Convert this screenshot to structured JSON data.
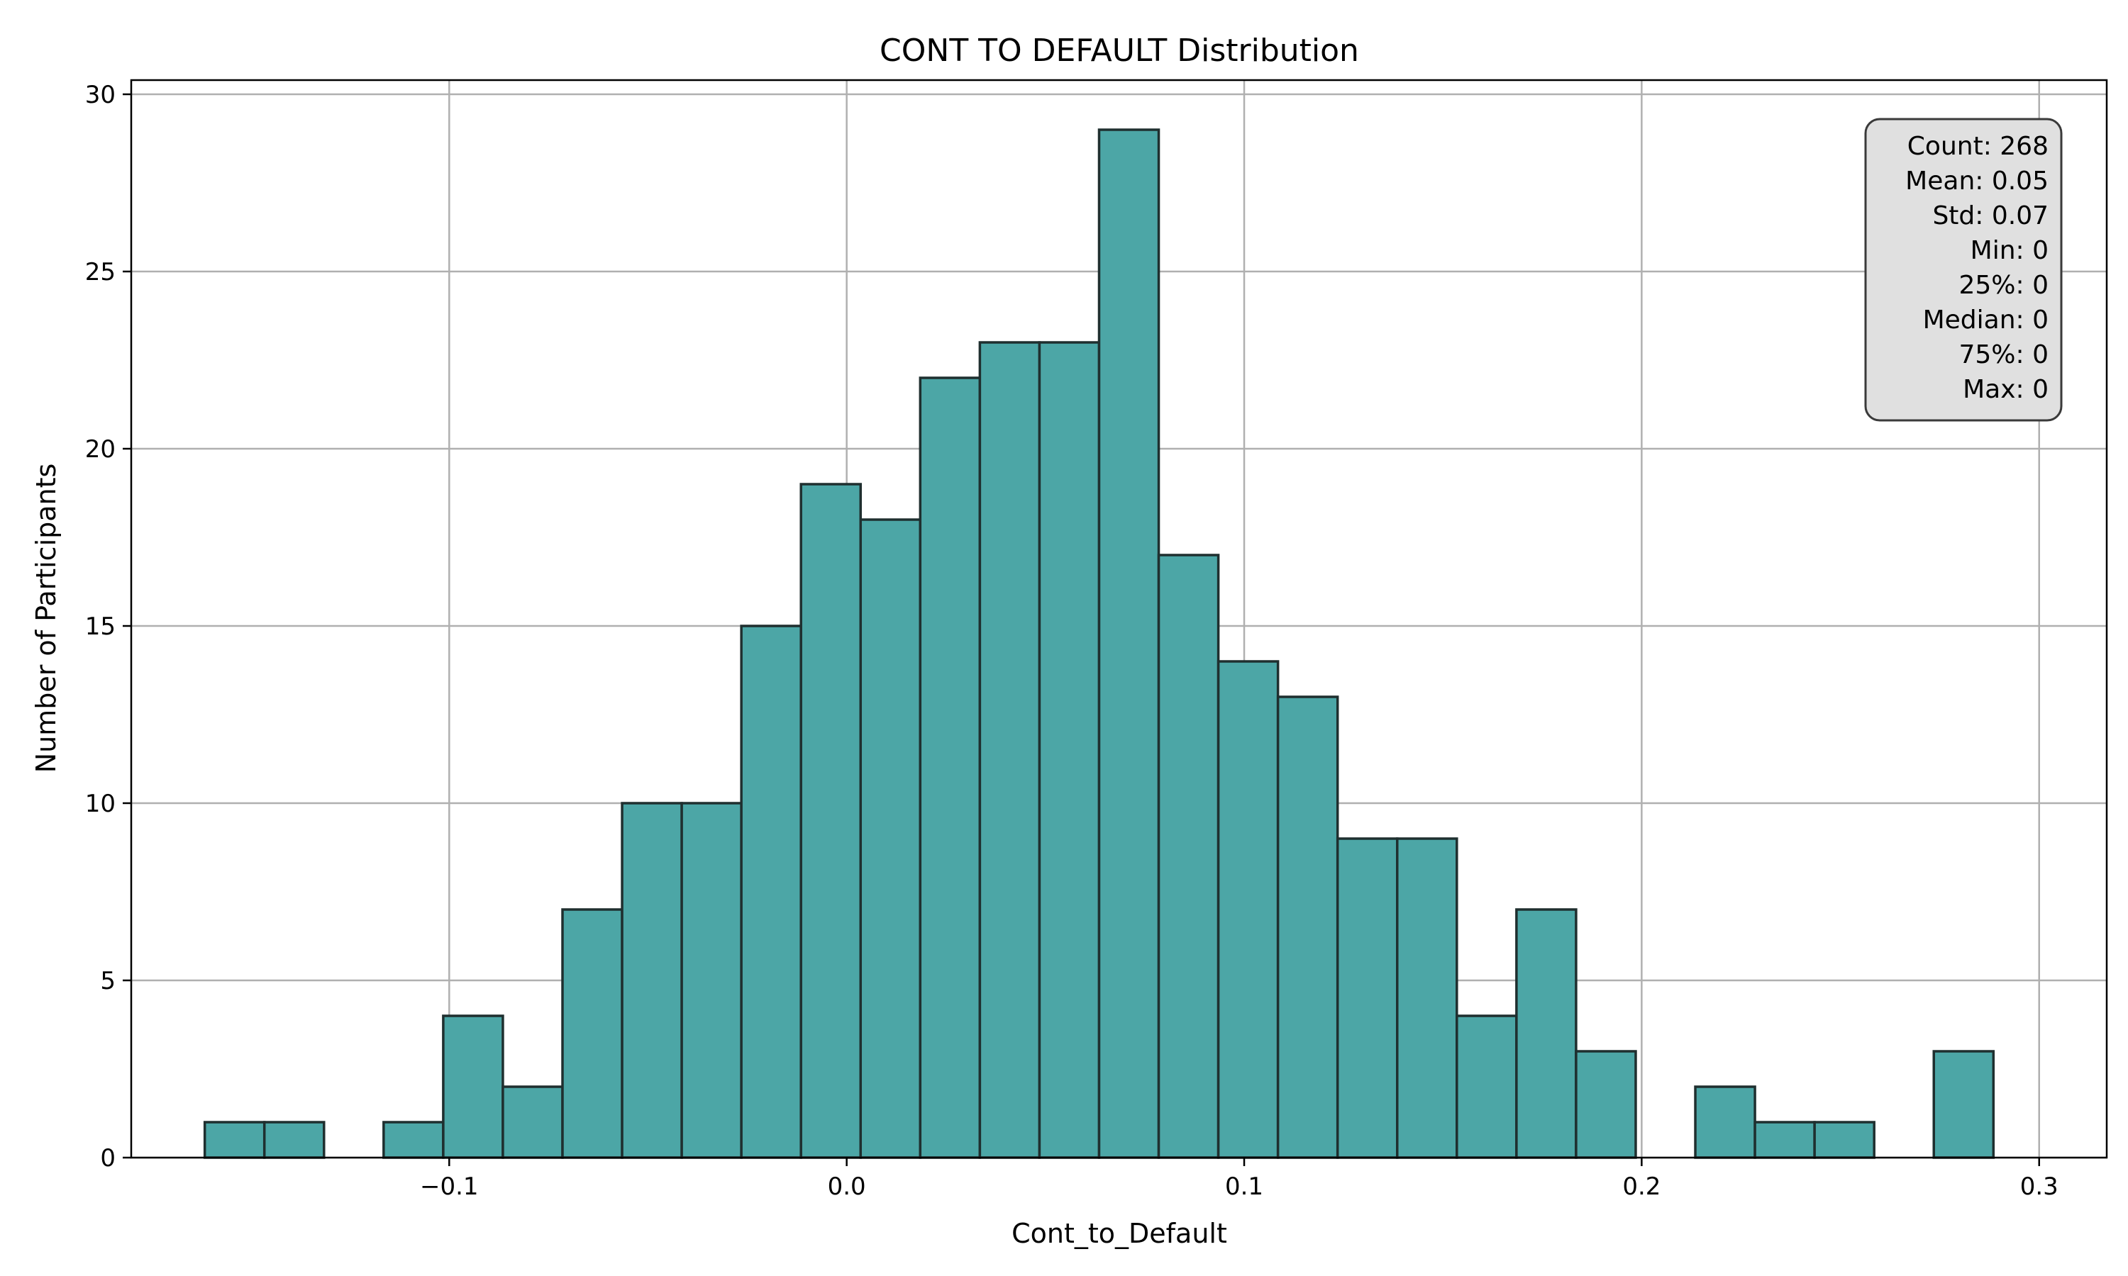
{
  "chart_data": {
    "type": "bar",
    "title": "CONT TO DEFAULT Distribution",
    "xlabel": "Cont_to_Default",
    "ylabel": "Number of Participants",
    "xlim": [
      -0.18,
      0.317
    ],
    "ylim": [
      0,
      30.4
    ],
    "xticks": [
      -0.1,
      0.0,
      0.1,
      0.2,
      0.3
    ],
    "xtick_labels": [
      "−0.1",
      "0.0",
      "0.1",
      "0.2",
      "0.3"
    ],
    "yticks": [
      0,
      5,
      10,
      15,
      20,
      25,
      30
    ],
    "ytick_labels": [
      "0",
      "5",
      "10",
      "15",
      "20",
      "25",
      "30"
    ],
    "grid": true,
    "bin_start": -0.1615,
    "bin_width": 0.015,
    "values": [
      1,
      1,
      0,
      1,
      4,
      2,
      7,
      10,
      10,
      15,
      19,
      18,
      22,
      23,
      23,
      29,
      17,
      14,
      13,
      9,
      9,
      4,
      7,
      3,
      0,
      2,
      1,
      1,
      0,
      3
    ],
    "colors": {
      "bar_fill": "#4ca6a6",
      "bar_edge": "#1f2f2f",
      "grid": "#b0b0b0",
      "stats_box_fill": "#e0e0e0",
      "stats_box_edge": "#3a3a3a"
    },
    "stats_box": {
      "placement": "top-right",
      "lines": [
        "Count: 268",
        "Mean: 0.05",
        "Std: 0.07",
        "Min: 0",
        "25%: 0",
        "Median: 0",
        "75%: 0",
        "Max: 0"
      ]
    }
  }
}
